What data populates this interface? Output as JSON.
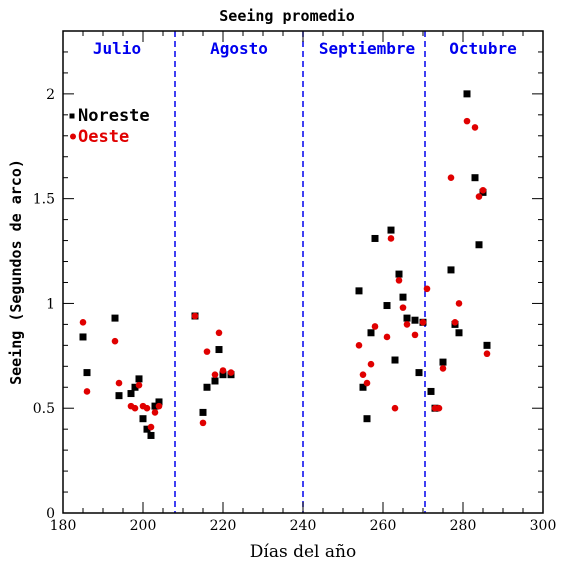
{
  "chart_data": {
    "type": "scatter",
    "title": "Seeing promedio",
    "xlabel": "Días del año",
    "ylabel": "Seeing (Segundos de arco)",
    "xlim": [
      180,
      300
    ],
    "ylim": [
      0,
      2.3
    ],
    "x_ticks": [
      "180",
      "200",
      "220",
      "240",
      "260",
      "280",
      "300"
    ],
    "y_ticks": [
      "0",
      "0.5",
      "1",
      "1.5",
      "2"
    ],
    "legend": [
      "Noreste",
      "Oeste"
    ],
    "legend_position": "top-left",
    "colors": {
      "noreste": "#000000",
      "oeste": "#e00000",
      "months": "#0000ee"
    },
    "month_boundaries": [
      208,
      240,
      270.5
    ],
    "months": [
      {
        "label": "Julio",
        "x": 193.5
      },
      {
        "label": "Agosto",
        "x": 224
      },
      {
        "label": "Septiembre",
        "x": 256
      },
      {
        "label": "Octubre",
        "x": 285
      }
    ],
    "series": [
      {
        "name": "Noreste",
        "marker": "square",
        "points": [
          [
            185,
            0.84
          ],
          [
            186,
            0.67
          ],
          [
            193,
            0.93
          ],
          [
            194,
            0.56
          ],
          [
            197,
            0.57
          ],
          [
            198,
            0.6
          ],
          [
            199,
            0.64
          ],
          [
            200,
            0.45
          ],
          [
            201,
            0.4
          ],
          [
            202,
            0.37
          ],
          [
            203,
            0.51
          ],
          [
            204,
            0.53
          ],
          [
            213,
            0.94
          ],
          [
            215,
            0.48
          ],
          [
            216,
            0.6
          ],
          [
            218,
            0.63
          ],
          [
            219,
            0.78
          ],
          [
            220,
            0.66
          ],
          [
            222,
            0.66
          ],
          [
            254,
            1.06
          ],
          [
            255,
            0.6
          ],
          [
            256,
            0.45
          ],
          [
            257,
            0.86
          ],
          [
            258,
            1.31
          ],
          [
            261,
            0.99
          ],
          [
            262,
            1.35
          ],
          [
            263,
            0.73
          ],
          [
            264,
            1.14
          ],
          [
            265,
            1.03
          ],
          [
            266,
            0.93
          ],
          [
            268,
            0.92
          ],
          [
            269,
            0.67
          ],
          [
            270,
            0.91
          ],
          [
            272,
            0.58
          ],
          [
            273,
            0.5
          ],
          [
            275,
            0.72
          ],
          [
            277,
            1.16
          ],
          [
            278,
            0.9
          ],
          [
            279,
            0.86
          ],
          [
            281,
            2.0
          ],
          [
            283,
            1.6
          ],
          [
            284,
            1.28
          ],
          [
            285,
            1.53
          ],
          [
            286,
            0.8
          ]
        ]
      },
      {
        "name": "Oeste",
        "marker": "circle",
        "points": [
          [
            185,
            0.91
          ],
          [
            186,
            0.58
          ],
          [
            193,
            0.82
          ],
          [
            194,
            0.62
          ],
          [
            197,
            0.51
          ],
          [
            198,
            0.5
          ],
          [
            199,
            0.61
          ],
          [
            200,
            0.51
          ],
          [
            201,
            0.5
          ],
          [
            202,
            0.41
          ],
          [
            203,
            0.48
          ],
          [
            204,
            0.51
          ],
          [
            213,
            0.94
          ],
          [
            215,
            0.43
          ],
          [
            216,
            0.77
          ],
          [
            218,
            0.66
          ],
          [
            219,
            0.86
          ],
          [
            220,
            0.68
          ],
          [
            222,
            0.67
          ],
          [
            254,
            0.8
          ],
          [
            255,
            0.66
          ],
          [
            256,
            0.62
          ],
          [
            257,
            0.71
          ],
          [
            258,
            0.89
          ],
          [
            261,
            0.84
          ],
          [
            262,
            1.31
          ],
          [
            263,
            0.5
          ],
          [
            264,
            1.11
          ],
          [
            265,
            0.98
          ],
          [
            266,
            0.9
          ],
          [
            268,
            0.85
          ],
          [
            270,
            0.91
          ],
          [
            271,
            1.07
          ],
          [
            273,
            0.5
          ],
          [
            274,
            0.5
          ],
          [
            275,
            0.69
          ],
          [
            277,
            1.6
          ],
          [
            278,
            0.91
          ],
          [
            279,
            1.0
          ],
          [
            281,
            1.87
          ],
          [
            283,
            1.84
          ],
          [
            284,
            1.51
          ],
          [
            285,
            1.54
          ],
          [
            286,
            0.76
          ]
        ]
      }
    ]
  }
}
